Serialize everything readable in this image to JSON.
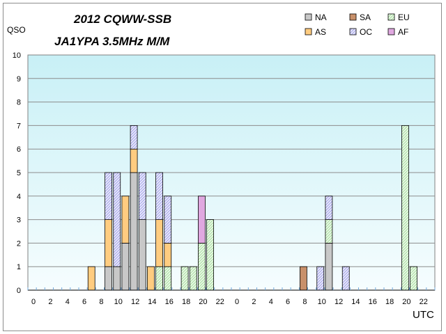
{
  "chart_data": {
    "type": "bar",
    "stacked": true,
    "title": "2012 CQWW-SSB",
    "subtitle": "JA1YPA  3.5MHz  M/M",
    "ylabel": "QSO",
    "xlabel": "UTC",
    "ylim": [
      0,
      10
    ],
    "yticks": [
      0,
      1,
      2,
      3,
      4,
      5,
      6,
      7,
      8,
      9,
      10
    ],
    "grid": true,
    "legend_position": "top-right",
    "categories": [
      "0",
      "1",
      "2",
      "3",
      "4",
      "5",
      "6",
      "7",
      "8",
      "9",
      "10",
      "11",
      "12",
      "13",
      "14",
      "15",
      "16",
      "17",
      "18",
      "19",
      "20",
      "21",
      "22",
      "23",
      "0",
      "1",
      "2",
      "3",
      "4",
      "5",
      "6",
      "7",
      "8",
      "9",
      "10",
      "11",
      "12",
      "13",
      "14",
      "15",
      "16",
      "17",
      "18",
      "19",
      "20",
      "21",
      "22",
      "23"
    ],
    "tick_labels": [
      "0",
      "2",
      "4",
      "6",
      "8",
      "10",
      "12",
      "14",
      "16",
      "18",
      "20",
      "22",
      "0",
      "2",
      "4",
      "6",
      "8",
      "10",
      "12",
      "14",
      "16",
      "18",
      "20",
      "22"
    ],
    "series": [
      {
        "name": "NA",
        "color": "#c8c8c8",
        "pattern": "none",
        "values": [
          0,
          0,
          0,
          0,
          0,
          0,
          0,
          0,
          0,
          1,
          1,
          2,
          5,
          3,
          0,
          0,
          0,
          0,
          0,
          0,
          0,
          0,
          0,
          0,
          0,
          0,
          0,
          0,
          0,
          0,
          0,
          0,
          0,
          0,
          0,
          2,
          0,
          0,
          0,
          0,
          0,
          0,
          0,
          0,
          0,
          0,
          0,
          0
        ]
      },
      {
        "name": "SA",
        "color": "#c8906a",
        "pattern": "none",
        "values": [
          0,
          0,
          0,
          0,
          0,
          0,
          0,
          0,
          0,
          0,
          0,
          0,
          0,
          0,
          0,
          0,
          0,
          0,
          0,
          0,
          0,
          0,
          0,
          0,
          0,
          0,
          0,
          0,
          0,
          0,
          0,
          0,
          1,
          0,
          0,
          0,
          0,
          0,
          0,
          0,
          0,
          0,
          0,
          0,
          0,
          0,
          0,
          0
        ]
      },
      {
        "name": "EU",
        "color": "#b8e6b0",
        "pattern": "diag",
        "values": [
          0,
          0,
          0,
          0,
          0,
          0,
          0,
          0,
          0,
          0,
          0,
          0,
          0,
          0,
          0,
          1,
          1,
          0,
          1,
          1,
          2,
          3,
          0,
          0,
          0,
          0,
          0,
          0,
          0,
          0,
          0,
          0,
          0,
          0,
          0,
          1,
          0,
          0,
          0,
          0,
          0,
          0,
          0,
          0,
          7,
          1,
          0,
          0
        ]
      },
      {
        "name": "AS",
        "color": "#ffcc80",
        "pattern": "none",
        "values": [
          0,
          0,
          0,
          0,
          0,
          0,
          0,
          1,
          0,
          2,
          0,
          2,
          1,
          0,
          1,
          2,
          1,
          0,
          0,
          0,
          0,
          0,
          0,
          0,
          0,
          0,
          0,
          0,
          0,
          0,
          0,
          0,
          0,
          0,
          0,
          0,
          0,
          0,
          0,
          0,
          0,
          0,
          0,
          0,
          0,
          0,
          0,
          0
        ]
      },
      {
        "name": "OC",
        "color": "#b4b4ee",
        "pattern": "diag",
        "values": [
          0,
          0,
          0,
          0,
          0,
          0,
          0,
          0,
          0,
          2,
          4,
          0,
          1,
          2,
          0,
          2,
          2,
          0,
          0,
          0,
          0,
          0,
          0,
          0,
          0,
          0,
          0,
          0,
          0,
          0,
          0,
          0,
          0,
          0,
          1,
          1,
          0,
          1,
          0,
          0,
          0,
          0,
          0,
          0,
          0,
          0,
          0,
          0
        ]
      },
      {
        "name": "AF",
        "color": "#e0a8e0",
        "pattern": "none",
        "values": [
          0,
          0,
          0,
          0,
          0,
          0,
          0,
          0,
          0,
          0,
          0,
          0,
          0,
          0,
          0,
          0,
          0,
          0,
          0,
          0,
          2,
          0,
          0,
          0,
          0,
          0,
          0,
          0,
          0,
          0,
          0,
          0,
          0,
          0,
          0,
          0,
          0,
          0,
          0,
          0,
          0,
          0,
          0,
          0,
          0,
          0,
          0,
          0
        ]
      }
    ],
    "legend_order": [
      "NA",
      "SA",
      "EU",
      "AS",
      "OC",
      "AF"
    ],
    "plot_background": "#e0f8fb"
  }
}
